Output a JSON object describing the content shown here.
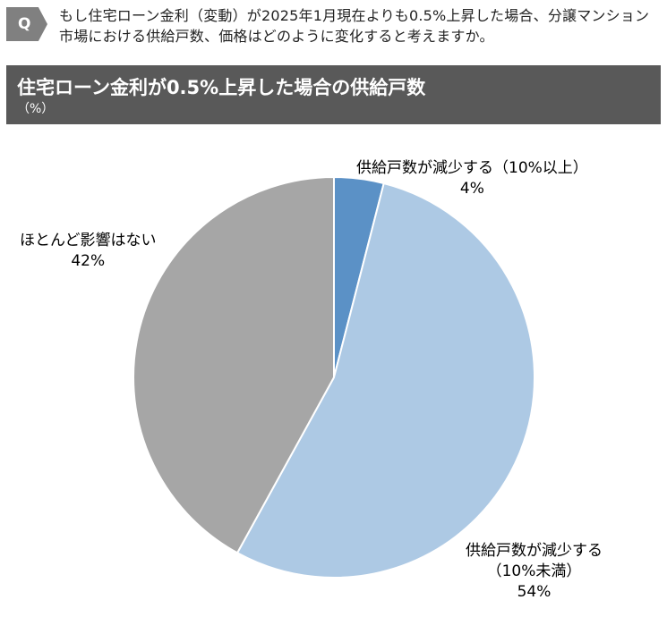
{
  "question": {
    "badge": "Q",
    "text": "もし住宅ローン金利（変動）が2025年1月現在よりも0.5%上昇した場合、分譲マンション市場における供給戸数、価格はどのように変化すると考えますか。"
  },
  "chart_data": {
    "type": "pie",
    "title": "住宅ローン金利が0.5%上昇した場合の供給戸数",
    "unit": "（%）",
    "start_angle_deg": 0,
    "direction": "clockwise",
    "slices": [
      {
        "label": "供給戸数が減少する（10%以上）",
        "label_lines": [
          "供給戸数が減少する（10%以上）"
        ],
        "value": 4,
        "display": "4%",
        "color": "#5B91C6"
      },
      {
        "label": "供給戸数が減少する（10%未満）",
        "label_lines": [
          "供給戸数が減少する",
          "（10%未満）"
        ],
        "value": 54,
        "display": "54%",
        "color": "#ADC9E4"
      },
      {
        "label": "ほとんど影響はない",
        "label_lines": [
          "ほとんど影響はない"
        ],
        "value": 42,
        "display": "42%",
        "color": "#A6A6A6"
      }
    ],
    "legend": "none"
  }
}
